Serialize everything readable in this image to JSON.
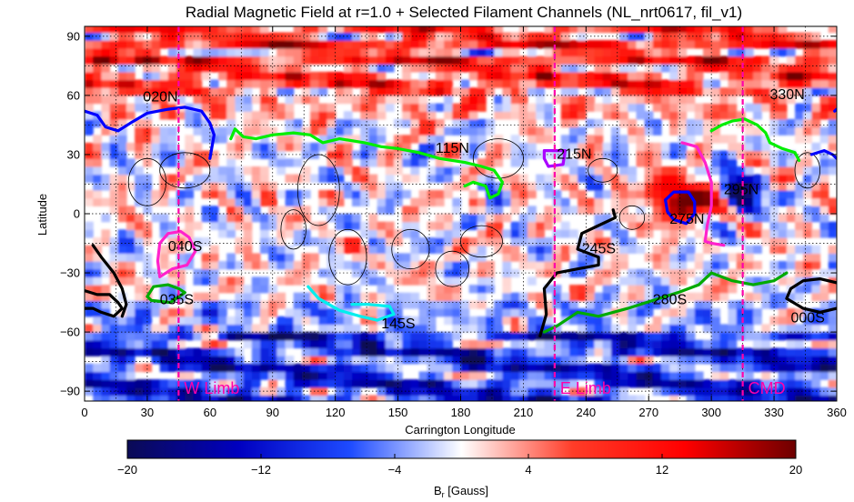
{
  "chart_data": {
    "type": "heatmap",
    "title": "Radial Magnetic Field at r=1.0 + Selected Filament Channels (NL_nrt0617, fil_v1)",
    "xlabel": "Carrington Longitude",
    "ylabel": "Latitude",
    "xlim": [
      0,
      360
    ],
    "ylim": [
      -95,
      95
    ],
    "xticks": [
      0,
      30,
      60,
      90,
      120,
      150,
      180,
      210,
      240,
      270,
      300,
      330,
      360
    ],
    "yticks": [
      -90,
      -60,
      -30,
      0,
      30,
      60,
      90
    ],
    "grid": true,
    "colorbar": {
      "label": "B",
      "label_sub": "r",
      "label_unit": " [Gauss]",
      "ticks": [
        -20,
        -12,
        -4,
        4,
        12,
        20
      ],
      "tick_labels": [
        "−20",
        "−12",
        "−4",
        "4",
        "12",
        "20"
      ],
      "range": [
        -20,
        20
      ],
      "colors": [
        "#0b0b55",
        "#0000c0",
        "#1e4bff",
        "#ffffff",
        "#ff3c28",
        "#ff0000",
        "#6e0000"
      ]
    },
    "markers": [
      {
        "label": "W Limb",
        "x": 45,
        "color": "#ff00aa"
      },
      {
        "label": "E Limb",
        "x": 225,
        "color": "#ff00aa"
      },
      {
        "label": "CMD",
        "x": 315,
        "color": "#ff00aa"
      }
    ],
    "channels": [
      {
        "label": "020N",
        "color": "#0000ff",
        "label_at": [
          28,
          57
        ],
        "points": [
          [
            0,
            52
          ],
          [
            6,
            50
          ],
          [
            10,
            44
          ],
          [
            16,
            42
          ],
          [
            22,
            46
          ],
          [
            30,
            51
          ],
          [
            40,
            53
          ],
          [
            48,
            54
          ],
          [
            56,
            52
          ],
          [
            60,
            46
          ],
          [
            62,
            40
          ],
          [
            61,
            34
          ],
          [
            60,
            28
          ]
        ]
      },
      {
        "label": "115N",
        "color": "#00ee00",
        "label_at": [
          168,
          31
        ],
        "points": [
          [
            70,
            38
          ],
          [
            72,
            43
          ],
          [
            76,
            39
          ],
          [
            82,
            38
          ],
          [
            90,
            40
          ],
          [
            100,
            41
          ],
          [
            108,
            40
          ],
          [
            114,
            36
          ],
          [
            122,
            38
          ],
          [
            134,
            36
          ],
          [
            142,
            34
          ],
          [
            150,
            33
          ],
          [
            160,
            31
          ],
          [
            170,
            28
          ],
          [
            182,
            26
          ],
          [
            190,
            24
          ],
          [
            196,
            22
          ],
          [
            200,
            16
          ],
          [
            198,
            10
          ],
          [
            194,
            8
          ],
          [
            192,
            14
          ],
          [
            186,
            16
          ],
          [
            182,
            14
          ]
        ]
      },
      {
        "label": "215N",
        "color": "#aa00ff",
        "label_at": [
          226,
          28
        ],
        "points": [
          [
            220,
            32
          ],
          [
            230,
            32
          ],
          [
            229,
            25
          ],
          [
            222,
            24
          ],
          [
            220,
            28
          ],
          [
            220,
            32
          ]
        ]
      },
      {
        "label": "330N",
        "color": "#00ee00",
        "label_at": [
          328,
          58
        ],
        "points": [
          [
            300,
            42
          ],
          [
            305,
            45
          ],
          [
            310,
            47
          ],
          [
            316,
            48
          ],
          [
            322,
            45
          ],
          [
            326,
            41
          ],
          [
            328,
            36
          ],
          [
            334,
            33
          ],
          [
            340,
            31
          ],
          [
            342,
            27
          ]
        ]
      },
      {
        "label": "",
        "color": "#0000ff",
        "label_at": [
          0,
          0
        ],
        "points": [
          [
            348,
            30
          ],
          [
            354,
            32
          ],
          [
            358,
            30
          ],
          [
            360,
            28
          ]
        ]
      },
      {
        "label": "",
        "color": "#0000ff",
        "label_at": [
          0,
          0
        ],
        "points": [
          [
            359,
            52
          ],
          [
            360,
            53
          ]
        ]
      },
      {
        "label": "",
        "color": "#0000ff",
        "label_at": [
          0,
          0
        ],
        "points": [
          [
            278,
            7
          ],
          [
            282,
            11
          ],
          [
            289,
            11
          ],
          [
            292,
            6
          ],
          [
            292,
            0
          ],
          [
            288,
            -5
          ],
          [
            282,
            -3
          ],
          [
            279,
            1
          ],
          [
            278,
            7
          ]
        ]
      },
      {
        "label": "275N",
        "color": "#ff22cc",
        "label_at": [
          280,
          -5
        ],
        "points": [
          [
            286,
            36
          ],
          [
            293,
            34
          ],
          [
            297,
            26
          ],
          [
            300,
            16
          ],
          [
            300,
            4
          ],
          [
            298,
            -6
          ],
          [
            297,
            -14
          ],
          [
            300,
            -15
          ],
          [
            306,
            -16
          ]
        ]
      },
      {
        "label": "295N",
        "color": "#000000",
        "label_at": [
          306,
          10
        ],
        "points": []
      },
      {
        "label": "040S",
        "color": "#ff22cc",
        "label_at": [
          40,
          -19
        ],
        "points": [
          [
            36,
            -15
          ],
          [
            40,
            -10
          ],
          [
            46,
            -9
          ],
          [
            50,
            -12
          ],
          [
            53,
            -19
          ],
          [
            49,
            -26
          ],
          [
            42,
            -28
          ],
          [
            36,
            -32
          ],
          [
            35,
            -24
          ],
          [
            36,
            -15
          ]
        ]
      },
      {
        "label": "035S",
        "color": "#00aa00",
        "label_at": [
          36,
          -46
        ],
        "points": [
          [
            30,
            -42
          ],
          [
            33,
            -37
          ],
          [
            40,
            -36
          ],
          [
            45,
            -38
          ],
          [
            48,
            -40
          ],
          [
            41,
            -45
          ],
          [
            32,
            -44
          ],
          [
            30,
            -42
          ]
        ]
      },
      {
        "label": "145S",
        "color": "#00eeee",
        "label_at": [
          142,
          -58
        ],
        "points": [
          [
            107,
            -37
          ],
          [
            112,
            -43
          ],
          [
            122,
            -49
          ],
          [
            132,
            -52
          ],
          [
            140,
            -54
          ],
          [
            148,
            -51
          ],
          [
            146,
            -47
          ],
          [
            136,
            -46
          ],
          [
            128,
            -46
          ]
        ]
      },
      {
        "label": "245S",
        "color": "#000000",
        "label_at": [
          238,
          -20
        ],
        "points": [
          [
            218,
            -62
          ],
          [
            221,
            -51
          ],
          [
            220,
            -38
          ],
          [
            226,
            -30
          ],
          [
            236,
            -28
          ],
          [
            246,
            -26
          ],
          [
            246,
            -22
          ],
          [
            236,
            -18
          ],
          [
            238,
            -10
          ],
          [
            246,
            -6
          ],
          [
            254,
            -2
          ],
          [
            253,
            2
          ]
        ]
      },
      {
        "label": "280S",
        "color": "#00aa00",
        "label_at": [
          272,
          -46
        ],
        "points": [
          [
            220,
            -60
          ],
          [
            226,
            -57
          ],
          [
            236,
            -50
          ],
          [
            246,
            -52
          ],
          [
            260,
            -48
          ],
          [
            272,
            -44
          ],
          [
            284,
            -40
          ],
          [
            294,
            -36
          ],
          [
            300,
            -30
          ],
          [
            310,
            -34
          ],
          [
            320,
            -36
          ],
          [
            330,
            -34
          ],
          [
            336,
            -30
          ]
        ]
      },
      {
        "label": "000S",
        "color": "#000000",
        "label_at": [
          338,
          -55
        ],
        "points": [
          [
            360,
            -35
          ],
          [
            352,
            -33
          ],
          [
            344,
            -34
          ],
          [
            338,
            -38
          ],
          [
            336,
            -43
          ],
          [
            344,
            -48
          ],
          [
            352,
            -50
          ],
          [
            360,
            -48
          ]
        ]
      },
      {
        "label": "",
        "color": "#000000",
        "label_at": [
          0,
          0
        ],
        "points": [
          [
            0,
            -39
          ],
          [
            6,
            -41
          ],
          [
            12,
            -41
          ],
          [
            16,
            -45
          ],
          [
            18,
            -48
          ],
          [
            14,
            -52
          ],
          [
            8,
            -50
          ],
          [
            4,
            -48
          ],
          [
            0,
            -48
          ]
        ]
      },
      {
        "label": "",
        "color": "#000000",
        "label_at": [
          0,
          0
        ],
        "points": [
          [
            4,
            -16
          ],
          [
            8,
            -22
          ],
          [
            14,
            -30
          ],
          [
            18,
            -38
          ],
          [
            20,
            -46
          ],
          [
            18,
            -52
          ]
        ]
      }
    ]
  }
}
